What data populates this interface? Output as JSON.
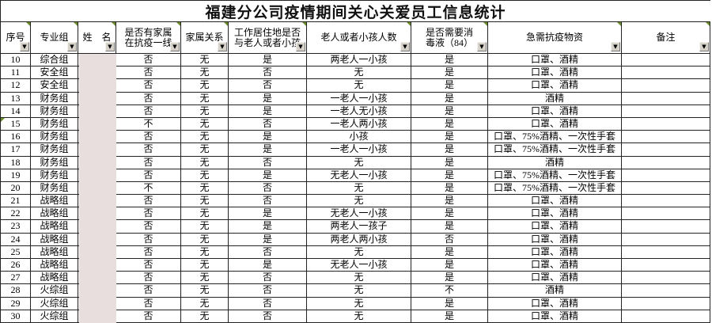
{
  "title": "福建分公司疫情期间关心关爱员工信息统计",
  "icons": {
    "filter_dropdown_glyph": "▼",
    "comment_marker": "green-corner-triangle",
    "error_marker": "green-corner-triangle"
  },
  "colors": {
    "grid": "#222222",
    "redaction_fill": "#e8dedd",
    "marker_green": "#6a8c2a",
    "filter_button_face": "#d6d2ca"
  },
  "table": {
    "columns": [
      {
        "id": "index",
        "label": "序号"
      },
      {
        "id": "group",
        "label": "专业组"
      },
      {
        "id": "name",
        "label": "姓　名"
      },
      {
        "id": "family-frontline",
        "label": "是否有家属\n在抗疫一线"
      },
      {
        "id": "family-relation",
        "label": "家属关系"
      },
      {
        "id": "live-with-elder-child",
        "label": "工作居住地是否\n与老人或者小孩"
      },
      {
        "id": "elder-child-count",
        "label": "老人或者小孩人数"
      },
      {
        "id": "need-disinfectant",
        "label": "是否需要消\n毒液（84）"
      },
      {
        "id": "supplies",
        "label": "急需抗疫物资"
      },
      {
        "id": "remarks",
        "label": "备注"
      }
    ],
    "error_marker_row": "15",
    "rows": [
      [
        "10",
        "综合组",
        "",
        "否",
        "无",
        "是",
        "两老人一小孩",
        "是",
        "口罩、酒精",
        ""
      ],
      [
        "11",
        "安全组",
        "",
        "否",
        "无",
        "否",
        "无",
        "是",
        "口罩、酒精",
        ""
      ],
      [
        "12",
        "安全组",
        "",
        "否",
        "无",
        "否",
        "无",
        "是",
        "口罩、酒精",
        ""
      ],
      [
        "13",
        "财务组",
        "",
        "否",
        "无",
        "是",
        "一老人一小孩",
        "是",
        "酒精",
        ""
      ],
      [
        "14",
        "财务组",
        "",
        "否",
        "无",
        "是",
        "一老人无小孩",
        "是",
        "口罩、酒精",
        ""
      ],
      [
        "15",
        "财务组",
        "",
        "不",
        "无",
        "否",
        "一老人两小孩",
        "是",
        "口罩、酒精",
        ""
      ],
      [
        "16",
        "财务组",
        "",
        "否",
        "无",
        "是",
        "小孩",
        "是",
        "口罩、75%酒精、一次性手套",
        ""
      ],
      [
        "17",
        "财务组",
        "",
        "否",
        "无",
        "是",
        "一老人一小孩",
        "是",
        "口罩、75%酒精、一次性手套",
        ""
      ],
      [
        "18",
        "财务组",
        "",
        "否",
        "无",
        "否",
        "无",
        "是",
        "酒精",
        ""
      ],
      [
        "19",
        "财务组",
        "",
        "否",
        "无",
        "是",
        "无老人一小孩",
        "是",
        "口罩、75%酒精、一次性手套",
        ""
      ],
      [
        "20",
        "财务组",
        "",
        "不",
        "无",
        "否",
        "无",
        "是",
        "口罩、75%酒精、一次性手套",
        ""
      ],
      [
        "21",
        "战略组",
        "",
        "否",
        "无",
        "否",
        "无",
        "是",
        "口罩、酒精",
        ""
      ],
      [
        "22",
        "战略组",
        "",
        "否",
        "无",
        "是",
        "无老人一小孩",
        "是",
        "口罩、酒精",
        ""
      ],
      [
        "23",
        "战略组",
        "",
        "否",
        "无",
        "是",
        "两老人一孩子",
        "是",
        "口罩、酒精",
        ""
      ],
      [
        "24",
        "战略组",
        "",
        "否",
        "无",
        "是",
        "两老人两小孩",
        "否",
        "口罩、酒精",
        ""
      ],
      [
        "25",
        "战略组",
        "",
        "否",
        "无",
        "否",
        "无",
        "是",
        "口罩、酒精",
        ""
      ],
      [
        "26",
        "战略组",
        "",
        "否",
        "无",
        "是",
        "无老人一小孩",
        "是",
        "口罩、酒精",
        ""
      ],
      [
        "27",
        "战略组",
        "",
        "否",
        "无",
        "否",
        "无",
        "是",
        "口罩、酒精",
        ""
      ],
      [
        "28",
        "火综组",
        "",
        "否",
        "无",
        "否",
        "无",
        "不",
        "酒精",
        ""
      ],
      [
        "29",
        "火综组",
        "",
        "否",
        "无",
        "否",
        "无",
        "是",
        "口罩、酒精",
        ""
      ],
      [
        "30",
        "火综组",
        "",
        "否",
        "无",
        "否",
        "无",
        "是",
        "口罩、酒精",
        ""
      ]
    ]
  }
}
